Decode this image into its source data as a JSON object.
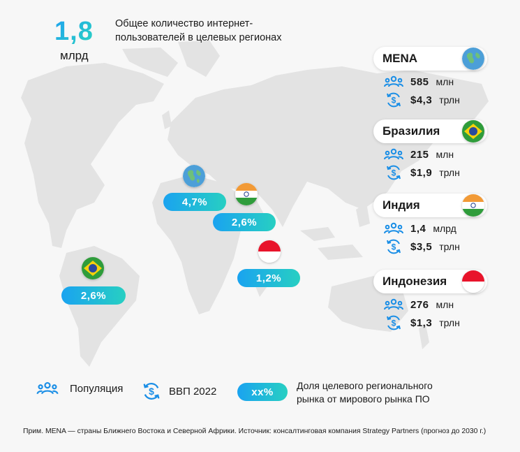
{
  "header": {
    "total_value": "1,8",
    "total_unit": "млрд",
    "description": "Общее количество интернет-пользователей в целевых регионах"
  },
  "chart_data": {
    "type": "map",
    "regions": [
      {
        "name": "MENA",
        "population_value": "585",
        "population_unit": "млн",
        "gdp_value": "$4,3",
        "gdp_unit": "трлн",
        "share": "4,7%",
        "flag": "globe-icon"
      },
      {
        "name": "Бразилия",
        "population_value": "215",
        "population_unit": "млн",
        "gdp_value": "$1,9",
        "gdp_unit": "трлн",
        "share": "2,6%",
        "flag": "brazil-flag"
      },
      {
        "name": "Индия",
        "population_value": "1,4",
        "population_unit": "млрд",
        "gdp_value": "$3,5",
        "gdp_unit": "трлн",
        "share": "2,6%",
        "flag": "india-flag"
      },
      {
        "name": "Индонезия",
        "population_value": "276",
        "population_unit": "млн",
        "gdp_value": "$1,3",
        "gdp_unit": "трлн",
        "share": "1,2%",
        "flag": "indonesia-flag"
      }
    ]
  },
  "legend": {
    "population": "Популяция",
    "gdp": "ВВП 2022",
    "share_sample": "xx%",
    "share_description": "Доля целевого регионального рынка от мирового рынка ПО"
  },
  "footnote": "Прим. MENA — страны Ближнего Востока и Северной Африки. Источник: консалтинговая компания Strategy Partners (прогноз до 2030 г.)",
  "colors": {
    "accent_start": "#1aa3f0",
    "accent_end": "#27cfc2",
    "map_land": "#e4e4e4",
    "icon_blue": "#1a8ee6"
  }
}
